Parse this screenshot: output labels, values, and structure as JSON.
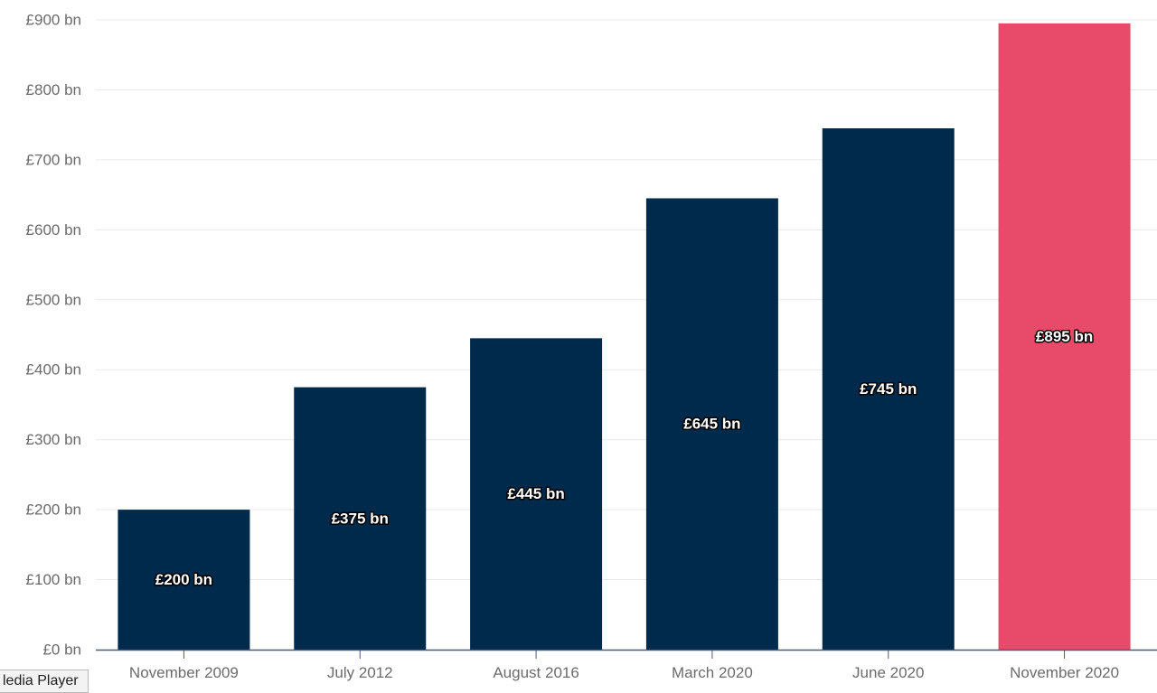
{
  "chart_data": {
    "type": "bar",
    "categories": [
      "November 2009",
      "July 2012",
      "August 2016",
      "March 2020",
      "June 2020",
      "November 2020"
    ],
    "values": [
      200,
      375,
      445,
      645,
      745,
      895
    ],
    "data_labels": [
      "£200 bn",
      "£375 bn",
      "£445 bn",
      "£645 bn",
      "£745 bn",
      "£895 bn"
    ],
    "y_ticks": [
      "£0 bn",
      "£100 bn",
      "£200 bn",
      "£300 bn",
      "£400 bn",
      "£500 bn",
      "£600 bn",
      "£700 bn",
      "£800 bn",
      "£900 bn"
    ],
    "y_tick_values": [
      0,
      100,
      200,
      300,
      400,
      500,
      600,
      700,
      800,
      900
    ],
    "ylim": [
      0,
      900
    ],
    "grid": true,
    "colors": {
      "bar": "#002a4c",
      "highlight_bar": "#e84a6a",
      "gridline": "#e9e9e9",
      "axis": "#4a5a78",
      "tick_text": "#6b6b6b"
    },
    "highlight_index": 5
  },
  "tooltip": {
    "text": "ledia Player"
  }
}
